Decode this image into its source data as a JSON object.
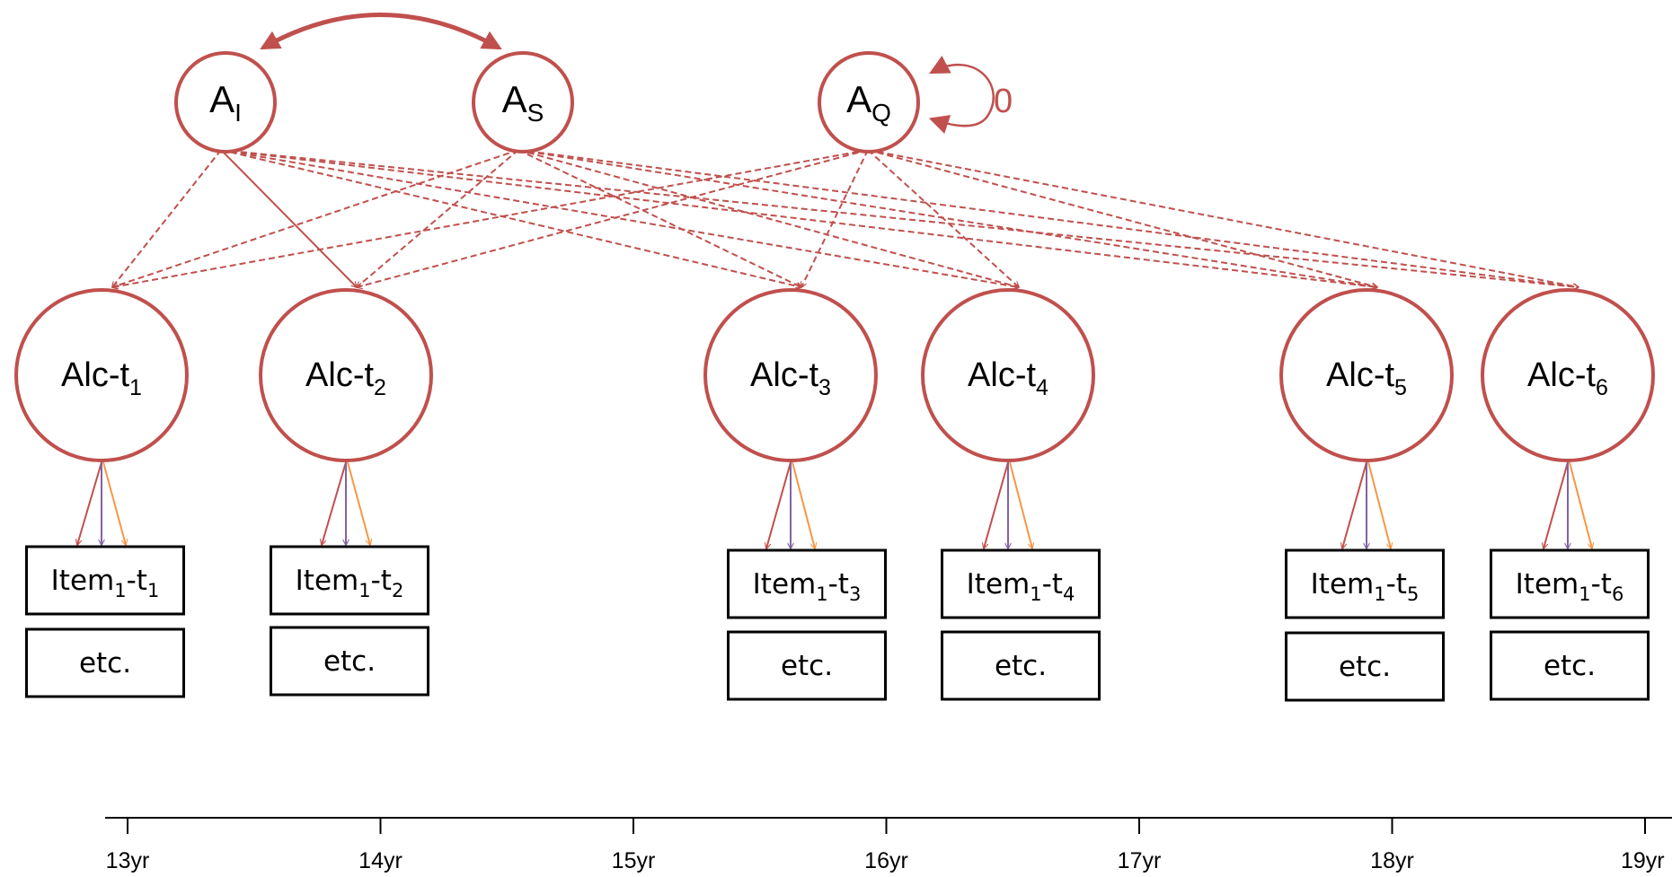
{
  "growth_factors": {
    "intercept": {
      "base": "A",
      "sub": "I"
    },
    "slope": {
      "base": "A",
      "sub": "S"
    },
    "quadratic": {
      "base": "A",
      "sub": "Q"
    },
    "quadratic_variance_label": "0"
  },
  "occasions": [
    {
      "latent": {
        "base": "Alc-t",
        "sub": "1"
      },
      "item": {
        "a": "Item",
        "b": "1",
        "c": "-t",
        "d": "1"
      },
      "etc": "etc."
    },
    {
      "latent": {
        "base": "Alc-t",
        "sub": "2"
      },
      "item": {
        "a": "Item",
        "b": "1",
        "c": "-t",
        "d": "2"
      },
      "etc": "etc."
    },
    {
      "latent": {
        "base": "Alc-t",
        "sub": "3"
      },
      "item": {
        "a": "Item",
        "b": "1",
        "c": "-t",
        "d": "3"
      },
      "etc": "etc."
    },
    {
      "latent": {
        "base": "Alc-t",
        "sub": "4"
      },
      "item": {
        "a": "Item",
        "b": "1",
        "c": "-t",
        "d": "4"
      },
      "etc": "etc."
    },
    {
      "latent": {
        "base": "Alc-t",
        "sub": "5"
      },
      "item": {
        "a": "Item",
        "b": "1",
        "c": "-t",
        "d": "5"
      },
      "etc": "etc."
    },
    {
      "latent": {
        "base": "Alc-t",
        "sub": "6"
      },
      "item": {
        "a": "Item",
        "b": "1",
        "c": "-t",
        "d": "6"
      },
      "etc": "etc."
    }
  ],
  "axis": {
    "ticks": [
      "13yr",
      "14yr",
      "15yr",
      "16yr",
      "17yr",
      "18yr",
      "19yr"
    ]
  },
  "colors": {
    "latent": "#c0504d",
    "loading_red": "#c0504d",
    "loading_purple": "#8064a2",
    "loading_orange": "#f79646",
    "box": "#000000"
  }
}
